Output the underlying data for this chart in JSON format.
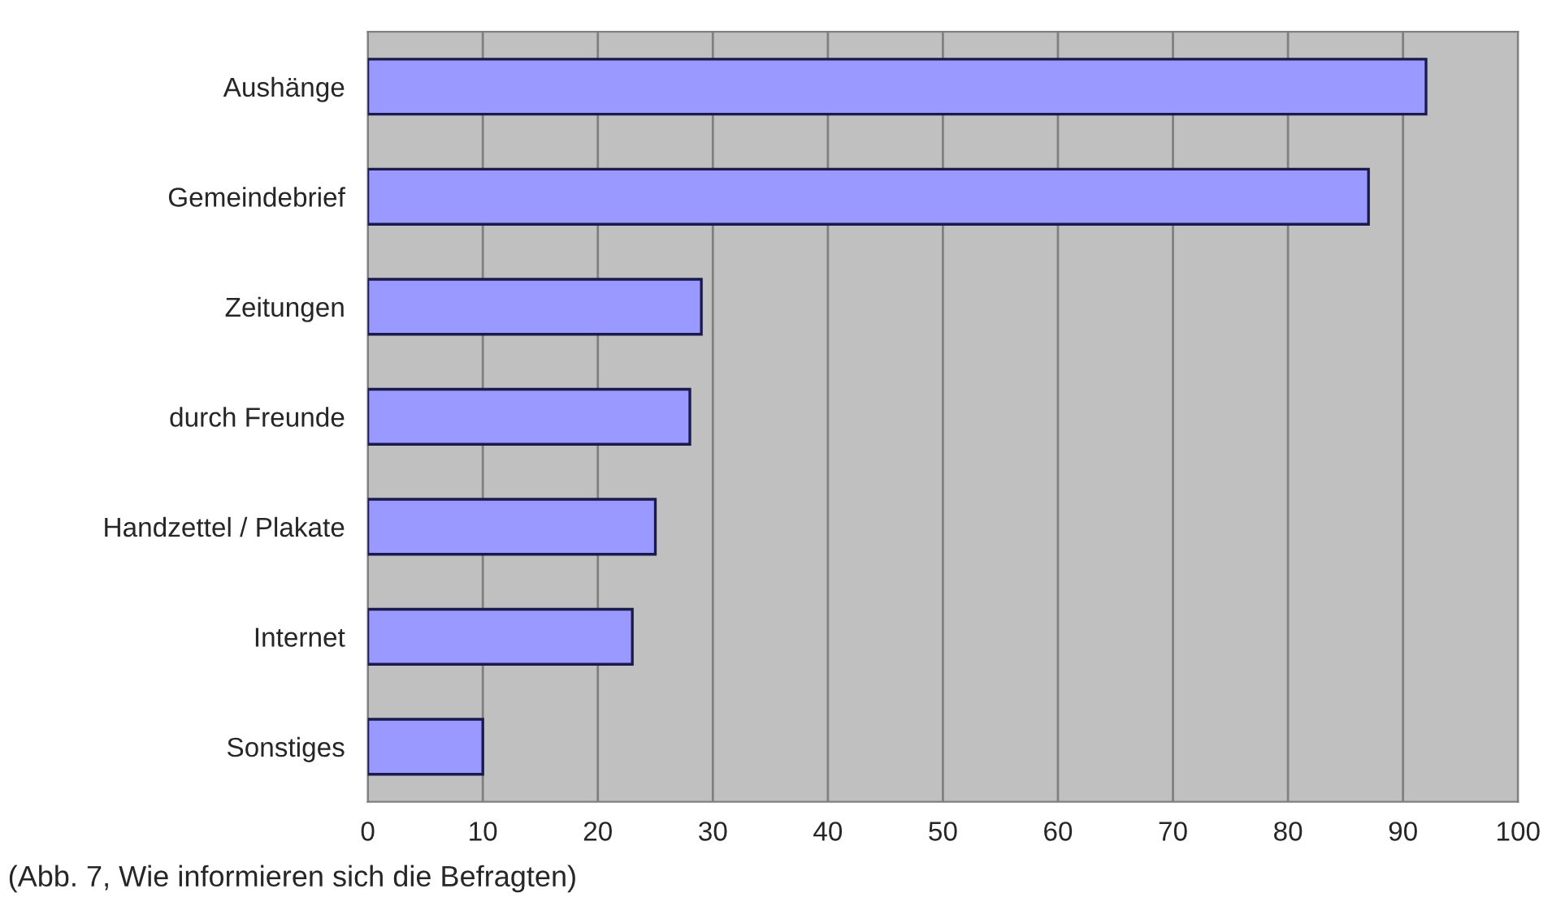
{
  "chart_data": {
    "type": "bar",
    "orientation": "horizontal",
    "categories": [
      "Aushänge",
      "Gemeindebrief",
      "Zeitungen",
      "durch Freunde",
      "Handzettel / Plakate",
      "Internet",
      "Sonstiges"
    ],
    "values": [
      92,
      87,
      29,
      28,
      25,
      23,
      10
    ],
    "color": "#9999ff",
    "xlim": [
      0,
      100
    ],
    "xticks": [
      0,
      10,
      20,
      30,
      40,
      50,
      60,
      70,
      80,
      90,
      100
    ],
    "grid": "x",
    "annotations": [
      "(Abb. 7, Wie informieren sich die Befragten)"
    ]
  }
}
